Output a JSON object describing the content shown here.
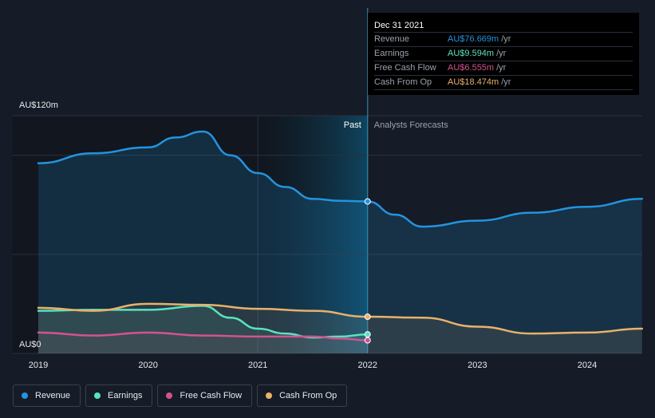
{
  "chart_data": {
    "type": "line",
    "y_unit_label": "AU$120m",
    "y_zero_label": "AU$0",
    "ylim": [
      0,
      120
    ],
    "x_ticks": [
      "2019",
      "2020",
      "2021",
      "2022",
      "2023",
      "2024"
    ],
    "past_label": "Past",
    "forecast_label": "Analysts Forecasts",
    "highlight_date": 2022.0,
    "series": [
      {
        "name": "Revenue",
        "color": "#2394df",
        "points": [
          [
            2019.0,
            96
          ],
          [
            2019.5,
            101
          ],
          [
            2020.0,
            104
          ],
          [
            2020.25,
            109
          ],
          [
            2020.5,
            112
          ],
          [
            2020.75,
            100
          ],
          [
            2021.0,
            91
          ],
          [
            2021.25,
            84
          ],
          [
            2021.5,
            78
          ],
          [
            2021.75,
            77
          ],
          [
            2022.0,
            76.7
          ],
          [
            2022.25,
            70
          ],
          [
            2022.5,
            64
          ],
          [
            2023.0,
            67
          ],
          [
            2023.5,
            71
          ],
          [
            2024.0,
            74
          ],
          [
            2024.5,
            78
          ]
        ]
      },
      {
        "name": "Earnings",
        "color": "#58e3c0",
        "points": [
          [
            2019.0,
            21.5
          ],
          [
            2019.5,
            22
          ],
          [
            2020.0,
            22
          ],
          [
            2020.5,
            24
          ],
          [
            2020.75,
            18
          ],
          [
            2021.0,
            12.5
          ],
          [
            2021.25,
            10
          ],
          [
            2021.5,
            8
          ],
          [
            2021.75,
            8.5
          ],
          [
            2022.0,
            9.6
          ]
        ]
      },
      {
        "name": "Free Cash Flow",
        "color": "#d3538c",
        "points": [
          [
            2019.0,
            10.5
          ],
          [
            2019.5,
            9
          ],
          [
            2020.0,
            10.5
          ],
          [
            2020.5,
            9
          ],
          [
            2021.0,
            8.5
          ],
          [
            2021.5,
            8.5
          ],
          [
            2021.75,
            7.5
          ],
          [
            2022.0,
            6.6
          ]
        ]
      },
      {
        "name": "Cash From Op",
        "color": "#e8b26a",
        "points": [
          [
            2019.0,
            23
          ],
          [
            2019.5,
            21.5
          ],
          [
            2020.0,
            25
          ],
          [
            2020.5,
            24.5
          ],
          [
            2021.0,
            22.5
          ],
          [
            2021.5,
            21.5
          ],
          [
            2022.0,
            18.5
          ],
          [
            2022.5,
            18
          ],
          [
            2023.0,
            13.5
          ],
          [
            2023.5,
            10
          ],
          [
            2024.0,
            10.5
          ],
          [
            2024.5,
            12.5
          ]
        ]
      }
    ]
  },
  "tooltip": {
    "date": "Dec 31 2021",
    "rows": [
      {
        "label": "Revenue",
        "value": "AU$76.669m",
        "unit": "/yr",
        "color": "#2394df"
      },
      {
        "label": "Earnings",
        "value": "AU$9.594m",
        "unit": "/yr",
        "color": "#58e3c0"
      },
      {
        "label": "Free Cash Flow",
        "value": "AU$6.555m",
        "unit": "/yr",
        "color": "#d3538c"
      },
      {
        "label": "Cash From Op",
        "value": "AU$18.474m",
        "unit": "/yr",
        "color": "#e8b26a"
      }
    ]
  },
  "legend": [
    {
      "label": "Revenue",
      "color": "#2394df"
    },
    {
      "label": "Earnings",
      "color": "#58e3c0"
    },
    {
      "label": "Free Cash Flow",
      "color": "#d3538c"
    },
    {
      "label": "Cash From Op",
      "color": "#e8b26a"
    }
  ]
}
